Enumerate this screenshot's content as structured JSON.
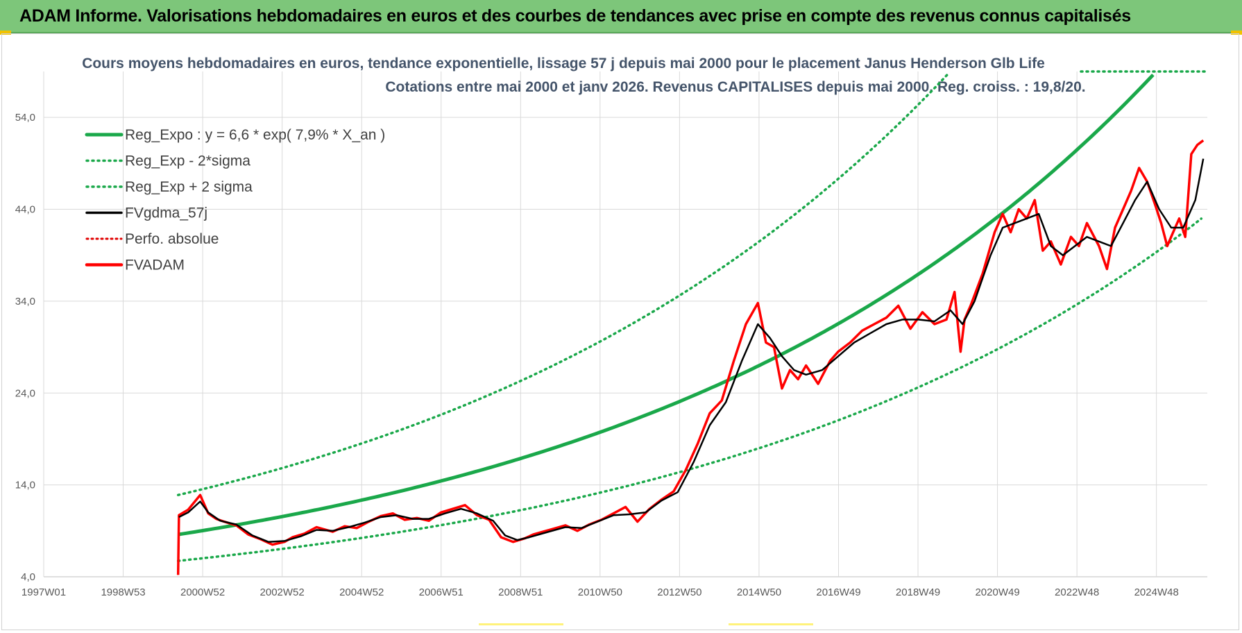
{
  "banner": {
    "title": "ADAM Informe. Valorisations hebdomadaires en euros et des courbes de tendances avec prise en compte des revenus connus capitalisés"
  },
  "colors": {
    "banner": "#7dc67a",
    "reg_expo": "#1aa84a",
    "sigma": "#1aa84a",
    "fvgdma": "#000000",
    "perfo": "#e00000",
    "fvadam": "#ff0000",
    "grid": "#d9d9d9",
    "subtitle": "#44546a"
  },
  "chart_data": {
    "type": "line",
    "title_lines": [
      "Cours moyens hebdomadaires en euros, tendance exponentielle, lissage 57 j depuis mai 2000 pour le placement Janus Henderson Glb Life",
      "Cotations entre mai 2000 et janv 2026. Revenus CAPITALISES depuis mai 2000. Reg. croiss. : 19,8/20."
    ],
    "x_ticks": [
      "1997W01",
      "1998W53",
      "2000W52",
      "2002W52",
      "2004W52",
      "2006W51",
      "2008W51",
      "2010W50",
      "2012W50",
      "2014W50",
      "2016W49",
      "2018W49",
      "2020W49",
      "2022W48",
      "2024W48"
    ],
    "x_range": [
      1997.0,
      2026.0
    ],
    "y_ticks": [
      "4,0",
      "14,0",
      "24,0",
      "34,0",
      "44,0",
      "54,0"
    ],
    "ylim": [
      4,
      59
    ],
    "grid": true,
    "legend_position": "top-left",
    "legend": [
      {
        "key": "reg_expo",
        "label": "Reg_Expo : y = 6,6 * exp( 7,9% *  X_an )"
      },
      {
        "key": "sigma_minus",
        "label": "Reg_Exp - 2*sigma"
      },
      {
        "key": "sigma_plus",
        "label": "Reg_Exp + 2 sigma"
      },
      {
        "key": "fvgdma",
        "label": "FVgdma_57j"
      },
      {
        "key": "perfo",
        "label": "Perfo. absolue"
      },
      {
        "key": "fvadam",
        "label": "FVADAM"
      }
    ],
    "regression": {
      "a": 6.6,
      "rate": 0.079,
      "start": 2000.35,
      "end": 2025.9,
      "sigma_factor": 1.5
    },
    "series": [
      {
        "name": "FVADAM",
        "x": [
          2000.35,
          2000.37,
          2000.6,
          2000.9,
          2001.1,
          2001.3,
          2001.5,
          2001.8,
          2002.1,
          2002.4,
          2002.7,
          2003.0,
          2003.2,
          2003.5,
          2003.8,
          2004.2,
          2004.5,
          2004.8,
          2005.1,
          2005.4,
          2005.7,
          2006.0,
          2006.3,
          2006.6,
          2006.9,
          2007.2,
          2007.5,
          2007.8,
          2008.1,
          2008.4,
          2008.7,
          2009.0,
          2009.2,
          2009.6,
          2010.0,
          2010.3,
          2010.6,
          2010.9,
          2011.2,
          2011.5,
          2011.8,
          2012.1,
          2012.4,
          2012.7,
          2013.0,
          2013.3,
          2013.6,
          2013.9,
          2014.2,
          2014.5,
          2014.8,
          2015.0,
          2015.2,
          2015.4,
          2015.6,
          2015.8,
          2016.0,
          2016.3,
          2016.6,
          2016.8,
          2017.1,
          2017.4,
          2017.7,
          2018.0,
          2018.3,
          2018.6,
          2018.9,
          2019.2,
          2019.5,
          2019.7,
          2019.85,
          2019.95,
          2020.1,
          2020.4,
          2020.7,
          2020.9,
          2021.1,
          2021.3,
          2021.5,
          2021.7,
          2021.9,
          2022.1,
          2022.35,
          2022.6,
          2022.8,
          2023.0,
          2023.3,
          2023.5,
          2023.7,
          2023.9,
          2024.1,
          2024.3,
          2024.5,
          2024.7,
          2024.85,
          2025.0,
          2025.15,
          2025.3,
          2025.45,
          2025.6,
          2025.75,
          2025.9
        ],
        "y": [
          4.2,
          10.7,
          11.3,
          12.9,
          10.9,
          10.3,
          10.0,
          9.6,
          8.6,
          8.1,
          7.5,
          7.8,
          8.3,
          8.7,
          9.4,
          8.9,
          9.5,
          9.3,
          10.0,
          10.6,
          10.9,
          10.2,
          10.4,
          10.1,
          11.0,
          11.4,
          11.8,
          10.7,
          10.2,
          8.3,
          7.8,
          8.2,
          8.6,
          9.1,
          9.6,
          9.0,
          9.7,
          10.2,
          10.9,
          11.6,
          10.0,
          11.4,
          12.4,
          13.3,
          15.6,
          18.5,
          21.8,
          23.2,
          27.5,
          31.5,
          33.8,
          29.5,
          29.0,
          24.5,
          26.5,
          25.5,
          27.0,
          25.0,
          27.5,
          28.5,
          29.5,
          30.8,
          31.5,
          32.2,
          33.5,
          31.0,
          32.8,
          31.5,
          32.0,
          35.0,
          28.5,
          32.0,
          33.5,
          37.0,
          41.5,
          43.5,
          41.5,
          44.0,
          43.0,
          45.0,
          39.5,
          40.5,
          38.0,
          41.0,
          40.0,
          42.5,
          40.0,
          37.5,
          42.0,
          44.0,
          46.0,
          48.5,
          47.0,
          44.5,
          42.5,
          40.0,
          41.5,
          43.0,
          41.0,
          50.0,
          51.0,
          51.5
        ]
      },
      {
        "name": "FVgdma_57j",
        "x": [
          2000.37,
          2000.6,
          2000.9,
          2001.1,
          2001.4,
          2001.8,
          2002.2,
          2002.6,
          2003.0,
          2003.4,
          2003.8,
          2004.2,
          2004.6,
          2005.0,
          2005.4,
          2005.8,
          2006.2,
          2006.6,
          2007.0,
          2007.4,
          2007.8,
          2008.2,
          2008.5,
          2008.8,
          2009.1,
          2009.5,
          2010.0,
          2010.4,
          2010.8,
          2011.2,
          2011.6,
          2012.0,
          2012.4,
          2012.8,
          2013.2,
          2013.6,
          2014.0,
          2014.4,
          2014.8,
          2015.1,
          2015.4,
          2015.7,
          2016.0,
          2016.4,
          2016.8,
          2017.2,
          2017.6,
          2018.0,
          2018.4,
          2018.8,
          2019.2,
          2019.6,
          2019.9,
          2020.2,
          2020.6,
          2020.9,
          2021.2,
          2021.5,
          2021.8,
          2022.1,
          2022.4,
          2022.7,
          2023.0,
          2023.3,
          2023.6,
          2023.9,
          2024.2,
          2024.5,
          2024.8,
          2025.1,
          2025.4,
          2025.7,
          2025.9
        ],
        "y": [
          10.5,
          11.0,
          12.2,
          11.0,
          10.1,
          9.7,
          8.5,
          7.8,
          7.9,
          8.4,
          9.1,
          9.0,
          9.4,
          9.9,
          10.5,
          10.7,
          10.3,
          10.3,
          10.9,
          11.4,
          10.9,
          10.1,
          8.5,
          8.0,
          8.3,
          8.8,
          9.4,
          9.3,
          10.0,
          10.7,
          10.8,
          11.0,
          12.3,
          13.2,
          16.5,
          20.5,
          23.0,
          27.5,
          31.5,
          30.0,
          28.0,
          26.5,
          26.0,
          26.5,
          28.0,
          29.5,
          30.5,
          31.5,
          32.0,
          32.0,
          31.8,
          33.0,
          31.5,
          34.0,
          39.0,
          42.0,
          42.5,
          43.0,
          43.5,
          40.0,
          39.0,
          40.0,
          41.0,
          40.5,
          40.0,
          42.5,
          45.0,
          47.0,
          44.0,
          42.0,
          42.0,
          45.0,
          49.5
        ]
      }
    ]
  }
}
